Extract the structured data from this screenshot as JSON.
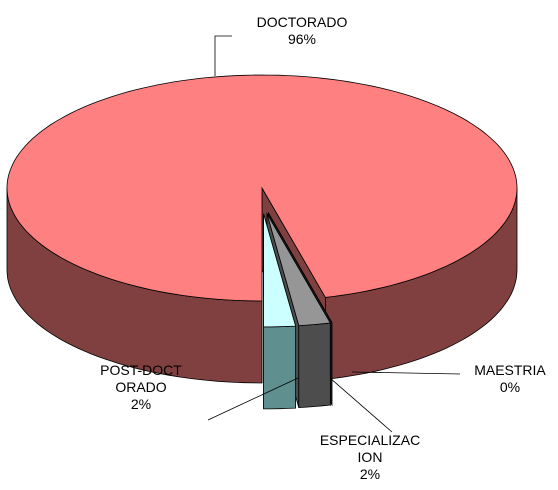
{
  "chart_data": {
    "type": "pie",
    "categories": [
      "DOCTORADO",
      "MAESTRIA",
      "ESPECIALIZACION",
      "POST-DOCTORADO"
    ],
    "values": [
      96,
      0,
      2,
      2
    ],
    "value_labels": [
      "96%",
      "0%",
      "2%",
      "2%"
    ],
    "colors": [
      "#ff8080",
      "#333333",
      "#969696",
      "#ccffff"
    ],
    "side_colors": [
      "#804040",
      "#222222",
      "#4d4d4d",
      "#5f8f8f"
    ]
  }
}
